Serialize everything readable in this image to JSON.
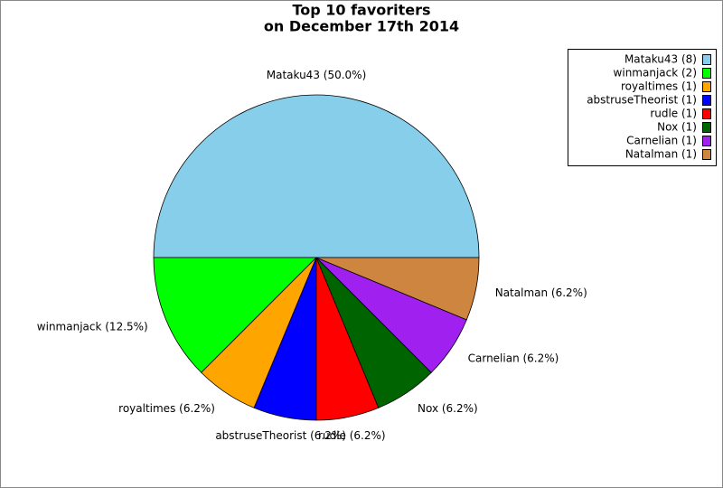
{
  "chart_data": {
    "type": "pie",
    "title": [
      "Top 10 favoriters",
      "on December 17th 2014"
    ],
    "values": [
      8,
      2,
      1,
      1,
      1,
      1,
      1,
      1
    ],
    "slice_labels": [
      "Mataku43 (50.0%)",
      "winmanjack (12.5%)",
      "royaltimes (6.2%)",
      "abstruseTheorist (6.2%)",
      "rudle (6.2%)",
      "Nox (6.2%)",
      "Carnelian (6.2%)",
      "Natalman (6.2%)"
    ],
    "legend_labels": [
      "Mataku43 (8)",
      "winmanjack (2)",
      "royaltimes (1)",
      "abstruseTheorist (1)",
      "rudle (1)",
      "Nox (1)",
      "Carnelian (1)",
      "Natalman (1)"
    ],
    "colors": [
      "#87ceeb",
      "#00ff00",
      "#ffa500",
      "#0000ff",
      "#ff0000",
      "#006400",
      "#a020f0",
      "#cd853f"
    ],
    "legend": "upper right"
  }
}
